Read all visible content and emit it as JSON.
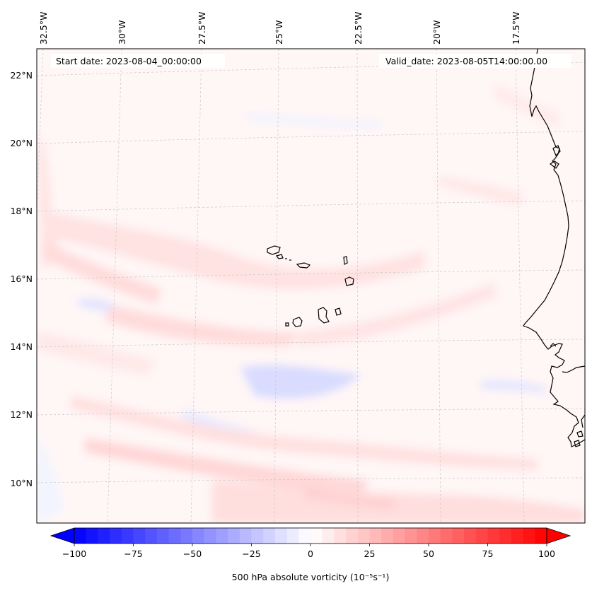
{
  "annotations": {
    "start_date": "Start date: 2023-08-04_00:00:00",
    "valid_date": "Valid_date: 2023-08-05T14:00:00.00"
  },
  "longitude_labels": [
    "32.5°W",
    "30°W",
    "27.5°W",
    "25°W",
    "22.5°W",
    "20°W",
    "17.5°W"
  ],
  "latitude_labels": [
    "22°N",
    "20°N",
    "18°N",
    "16°N",
    "14°N",
    "12°N",
    "10°N"
  ],
  "colorbar": {
    "label": "500 hPa absolute vorticity (10⁻⁵s⁻¹)",
    "min": -100,
    "max": 100,
    "tick_labels": [
      "−100",
      "−75",
      "−50",
      "−25",
      "0",
      "25",
      "50",
      "75",
      "100"
    ],
    "low_color": "#0000ff",
    "mid_color": "#ffffff",
    "high_color": "#ff0000"
  }
}
